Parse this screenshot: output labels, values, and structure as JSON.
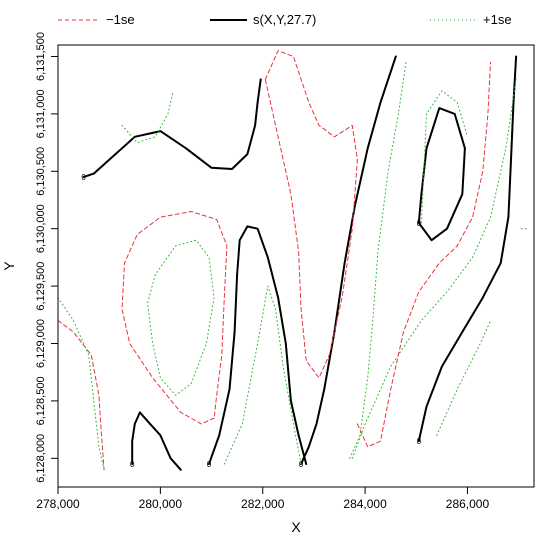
{
  "chart_data": {
    "type": "line",
    "title": "",
    "xlabel": "X",
    "ylabel": "Y",
    "xlim": [
      278000,
      287300
    ],
    "ylim": [
      6127750,
      6131600
    ],
    "x_ticks": [
      278000,
      280000,
      282000,
      284000,
      286000
    ],
    "x_tick_labels": [
      "278,000",
      "280,000",
      "282,000",
      "284,000",
      "286,000"
    ],
    "y_ticks": [
      6128000,
      6128500,
      6129000,
      6129500,
      6130000,
      6130500,
      6131000,
      6131500
    ],
    "y_tick_labels": [
      "6,128,000",
      "6,128,500",
      "6,129,000",
      "6,129,500",
      "6,130,000",
      "6,130,500",
      "6,131,000",
      "6,131,500"
    ],
    "grid": false,
    "legend": {
      "position": "top",
      "entries": [
        {
          "label": "−1se",
          "color": "#e8333a",
          "style": "dashed"
        },
        {
          "label": "s(X,Y,27.7)",
          "color": "#000000",
          "style": "solid"
        },
        {
          "label": "+1se",
          "color": "#33b233",
          "style": "dotted"
        }
      ]
    },
    "series": [
      {
        "name": "s(X,Y,27.7)",
        "color": "#000000",
        "style": "solid",
        "lines": [
          {
            "label": "0",
            "points": [
              [
                278500,
                6130450
              ],
              [
                278700,
                6130480
              ],
              [
                279000,
                6130600
              ],
              [
                279500,
                6130800
              ],
              [
                280000,
                6130850
              ],
              [
                280500,
                6130700
              ],
              [
                281000,
                6130530
              ],
              [
                281400,
                6130520
              ],
              [
                281700,
                6130650
              ],
              [
                281850,
                6130900
              ],
              [
                281900,
                6131100
              ],
              [
                281960,
                6131300
              ]
            ]
          },
          {
            "label": "0",
            "points": [
              [
                279450,
                6127950
              ],
              [
                279450,
                6128150
              ],
              [
                279500,
                6128300
              ],
              [
                279600,
                6128400
              ],
              [
                279800,
                6128300
              ],
              [
                280000,
                6128200
              ],
              [
                280200,
                6128000
              ],
              [
                280400,
                6127900
              ]
            ]
          },
          {
            "label": "0",
            "points": [
              [
                280950,
                6127950
              ],
              [
                281150,
                6128200
              ],
              [
                281350,
                6128600
              ],
              [
                281450,
                6129100
              ],
              [
                281500,
                6129600
              ],
              [
                281550,
                6129900
              ],
              [
                281700,
                6130020
              ],
              [
                281900,
                6130000
              ],
              [
                282100,
                6129750
              ],
              [
                282300,
                6129400
              ],
              [
                282450,
                6129000
              ],
              [
                282550,
                6128500
              ],
              [
                282700,
                6128200
              ],
              [
                282850,
                6127950
              ]
            ]
          },
          {
            "label": "0",
            "points": [
              [
                282750,
                6127950
              ],
              [
                282900,
                6128100
              ],
              [
                283050,
                6128300
              ],
              [
                283200,
                6128600
              ],
              [
                283400,
                6129100
              ],
              [
                283600,
                6129700
              ],
              [
                283800,
                6130200
              ],
              [
                284050,
                6130700
              ],
              [
                284300,
                6131100
              ],
              [
                284600,
                6131500
              ]
            ]
          },
          {
            "label": "0",
            "points": [
              [
                285050,
                6130050
              ],
              [
                285100,
                6130300
              ],
              [
                285200,
                6130700
              ],
              [
                285450,
                6131050
              ],
              [
                285750,
                6131000
              ],
              [
                285950,
                6130700
              ],
              [
                285900,
                6130300
              ],
              [
                285600,
                6130000
              ],
              [
                285300,
                6129900
              ],
              [
                285050,
                6130050
              ]
            ]
          },
          {
            "label": "0",
            "points": [
              [
                285050,
                6128150
              ],
              [
                285200,
                6128450
              ],
              [
                285500,
                6128800
              ],
              [
                285900,
                6129100
              ],
              [
                286300,
                6129400
              ],
              [
                286650,
                6129700
              ],
              [
                286800,
                6130100
              ],
              [
                286850,
                6130600
              ],
              [
                286900,
                6131100
              ],
              [
                286950,
                6131500
              ]
            ]
          }
        ]
      },
      {
        "name": "−1se",
        "color": "#e8333a",
        "style": "dashed",
        "lines": [
          {
            "points": [
              [
                278000,
                6129200
              ],
              [
                278300,
                6129100
              ],
              [
                278650,
                6128900
              ],
              [
                278800,
                6128550
              ],
              [
                278850,
                6128200
              ],
              [
                278900,
                6127900
              ]
            ]
          },
          {
            "points": [
              [
                281050,
                6128350
              ],
              [
                280800,
                6128300
              ],
              [
                280400,
                6128400
              ],
              [
                279850,
                6128700
              ],
              [
                279400,
                6129000
              ],
              [
                279250,
                6129300
              ],
              [
                279300,
                6129700
              ],
              [
                279550,
                6129950
              ],
              [
                280000,
                6130100
              ],
              [
                280600,
                6130150
              ],
              [
                281100,
                6130080
              ],
              [
                281300,
                6129850
              ],
              [
                281250,
                6129400
              ],
              [
                281200,
                6128900
              ],
              [
                281100,
                6128550
              ],
              [
                281050,
                6128350
              ]
            ]
          },
          {
            "points": [
              [
                282050,
                6131300
              ],
              [
                282300,
                6131550
              ],
              [
                282600,
                6131500
              ],
              [
                282900,
                6131100
              ],
              [
                283100,
                6130900
              ],
              [
                283400,
                6130800
              ],
              [
                283750,
                6130900
              ],
              [
                283850,
                6130600
              ],
              [
                283750,
                6130000
              ],
              [
                283550,
                6129400
              ],
              [
                283300,
                6128900
              ],
              [
                283100,
                6128700
              ],
              [
                282850,
                6128850
              ],
              [
                282750,
                6129300
              ],
              [
                282700,
                6129800
              ],
              [
                282550,
                6130300
              ],
              [
                282300,
                6130800
              ],
              [
                282050,
                6131300
              ]
            ]
          },
          {
            "points": [
              [
                283850,
                6128300
              ],
              [
                284050,
                6128100
              ],
              [
                284300,
                6128150
              ],
              [
                284500,
                6128600
              ],
              [
                284750,
                6129100
              ],
              [
                285050,
                6129450
              ],
              [
                285450,
                6129700
              ],
              [
                285800,
                6129850
              ],
              [
                286100,
                6130100
              ],
              [
                286300,
                6130500
              ],
              [
                286400,
                6131000
              ],
              [
                286450,
                6131450
              ]
            ]
          }
        ]
      },
      {
        "name": "+1se",
        "color": "#33b233",
        "style": "dotted",
        "lines": [
          {
            "points": [
              [
                278000,
                6129400
              ],
              [
                278300,
                6129200
              ],
              [
                278600,
                6128900
              ],
              [
                278700,
                6128500
              ],
              [
                278800,
                6128100
              ],
              [
                278900,
                6127900
              ]
            ]
          },
          {
            "points": [
              [
                279250,
                6130900
              ],
              [
                279550,
                6130750
              ],
              [
                279900,
                6130800
              ],
              [
                280150,
                6131000
              ],
              [
                280250,
                6131200
              ]
            ]
          },
          {
            "points": [
              [
                279900,
                6129600
              ],
              [
                279750,
                6129350
              ],
              [
                279850,
                6129000
              ],
              [
                280000,
                6128700
              ],
              [
                280300,
                6128550
              ],
              [
                280600,
                6128650
              ],
              [
                280900,
                6129000
              ],
              [
                281050,
                6129400
              ],
              [
                280950,
                6129750
              ],
              [
                280700,
                6129900
              ],
              [
                280300,
                6129850
              ],
              [
                279900,
                6129600
              ]
            ]
          },
          {
            "points": [
              [
                281250,
                6127950
              ],
              [
                281600,
                6128300
              ],
              [
                281900,
                6129000
              ],
              [
                282100,
                6129500
              ],
              [
                282250,
                6129300
              ],
              [
                282400,
                6128800
              ],
              [
                282600,
                6128300
              ],
              [
                282750,
                6127950
              ]
            ]
          },
          {
            "points": [
              [
                283700,
                6128000
              ],
              [
                283900,
                6128200
              ],
              [
                284050,
                6128700
              ],
              [
                284150,
                6129200
              ],
              [
                284250,
                6129800
              ],
              [
                284450,
                6130500
              ],
              [
                284650,
                6131000
              ],
              [
                284800,
                6131450
              ]
            ]
          },
          {
            "points": [
              [
                285100,
                6130050
              ],
              [
                285200,
                6131000
              ],
              [
                285500,
                6131200
              ],
              [
                285800,
                6131100
              ],
              [
                286000,
                6130800
              ]
            ]
          },
          {
            "points": [
              [
                283750,
                6128000
              ],
              [
                284000,
                6128300
              ],
              [
                284500,
                6128800
              ],
              [
                285100,
                6129200
              ],
              [
                285600,
                6129450
              ],
              [
                286100,
                6129750
              ],
              [
                286450,
                6130100
              ],
              [
                286750,
                6130700
              ],
              [
                286950,
                6131300
              ]
            ]
          },
          {
            "points": [
              [
                285400,
                6128200
              ],
              [
                285800,
                6128600
              ],
              [
                286250,
                6129000
              ],
              [
                286450,
                6129200
              ]
            ]
          },
          {
            "points": [
              [
                287050,
                6130000
              ],
              [
                287150,
                6130000
              ]
            ]
          }
        ]
      }
    ]
  }
}
